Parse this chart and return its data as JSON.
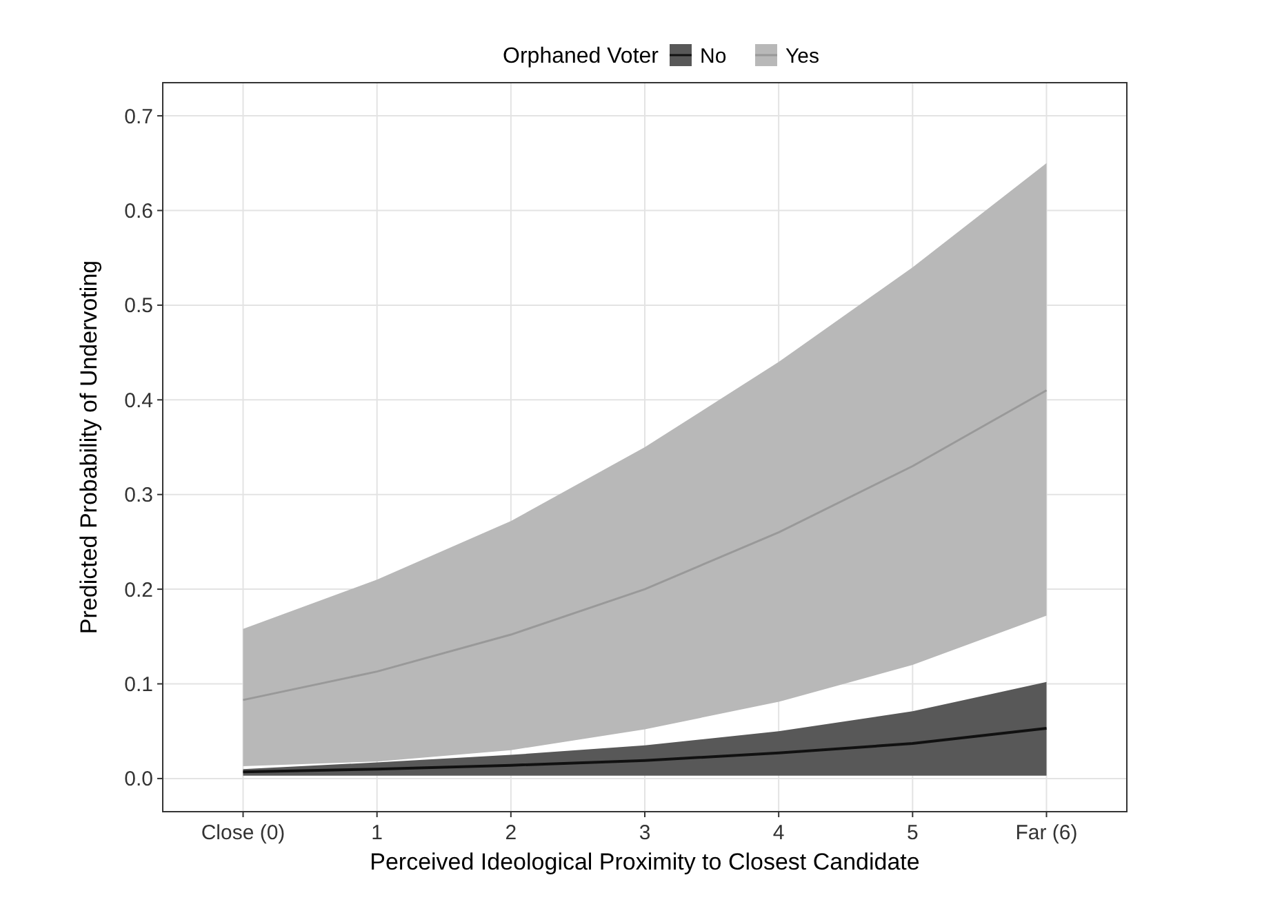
{
  "chart_data": {
    "type": "line",
    "xlabel": "Perceived Ideological Proximity to Closest Candidate",
    "ylabel": "Predicted Probability of Undervoting",
    "legend_title": "Orphaned Voter",
    "legend": "top",
    "grid": true,
    "categories": [
      "Close (0)",
      "1",
      "2",
      "3",
      "4",
      "5",
      "Far (6)"
    ],
    "ylim": [
      -0.035,
      0.735
    ],
    "yticks": [
      {
        "value": 0,
        "label": "0.0"
      },
      0.1,
      0.2,
      0.3,
      0.4,
      0.5,
      0.6,
      0.7
    ],
    "series": [
      {
        "name": "No",
        "color": "#111111",
        "values": [
          0.007,
          0.01,
          0.014,
          0.019,
          0.027,
          0.037,
          0.053
        ],
        "lower": [
          0.003,
          0.003,
          0.003,
          0.003,
          0.003,
          0.003,
          0.003
        ],
        "upper": [
          0.01,
          0.017,
          0.025,
          0.035,
          0.05,
          0.071,
          0.102
        ]
      },
      {
        "name": "Yes",
        "color": "#999999",
        "values": [
          0.083,
          0.113,
          0.152,
          0.2,
          0.26,
          0.33,
          0.41
        ],
        "lower": [
          0.013,
          0.018,
          0.03,
          0.052,
          0.081,
          0.12,
          0.172
        ],
        "upper": [
          0.158,
          0.21,
          0.272,
          0.35,
          0.44,
          0.54,
          0.65
        ]
      }
    ]
  }
}
